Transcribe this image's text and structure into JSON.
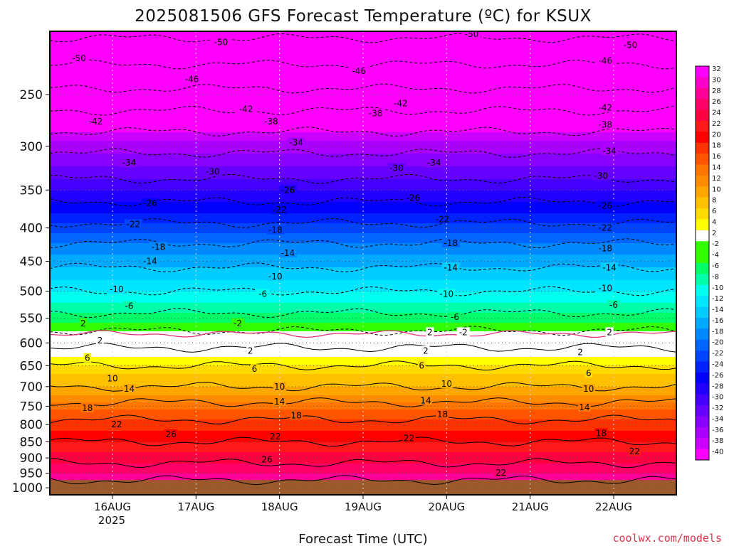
{
  "chart_data": {
    "type": "heatmap",
    "title": "2025081506 GFS Forecast Temperature (ºC) for KSUX",
    "xlabel": "Forecast Time (UTC)",
    "ylabel": "",
    "x_ticks": [
      "16AUG",
      "17AUG",
      "18AUG",
      "19AUG",
      "20AUG",
      "21AUG",
      "22AUG"
    ],
    "x_year": "2025",
    "x_range_days": [
      15.25,
      22.75
    ],
    "y_ticks": [
      250,
      300,
      350,
      400,
      450,
      500,
      550,
      600,
      650,
      700,
      750,
      800,
      850,
      900,
      950,
      1000
    ],
    "ylim_hPa": [
      200,
      1025
    ],
    "y_scale": "log",
    "surface_pressure_hPa": 973,
    "grid": "dotted",
    "colorbar": {
      "labels": [
        32,
        30,
        28,
        26,
        24,
        22,
        20,
        18,
        16,
        14,
        12,
        10,
        8,
        6,
        4,
        2,
        -2,
        -4,
        -6,
        -8,
        -10,
        -12,
        -14,
        -16,
        -18,
        -20,
        -22,
        -24,
        -26,
        -28,
        -30,
        -32,
        -34,
        -36,
        -38,
        -40
      ],
      "colors": [
        "#ff00ff",
        "#ff00cc",
        "#ff0099",
        "#ff0066",
        "#ff0040",
        "#ff1a1a",
        "#ff0000",
        "#ff3300",
        "#ff5500",
        "#ff7700",
        "#ff8c00",
        "#ffa600",
        "#ffc000",
        "#ffdb00",
        "#ffff00",
        "#ffffff",
        "#33ff00",
        "#33ff00",
        "#00ff66",
        "#00ffaa",
        "#00ffee",
        "#00e6ff",
        "#00ccff",
        "#00aaff",
        "#0088ff",
        "#0066ff",
        "#0044ff",
        "#0022ff",
        "#0000ff",
        "#2200ff",
        "#4400ff",
        "#6600ff",
        "#8800ff",
        "#aa00ff",
        "#cc00ff",
        "#ff00ff"
      ]
    },
    "layers_hPa_to_tempC": [
      [
        200,
        -55
      ],
      [
        220,
        -51
      ],
      [
        250,
        -45
      ],
      [
        280,
        -39
      ],
      [
        300,
        -35
      ],
      [
        330,
        -31
      ],
      [
        350,
        -28
      ],
      [
        380,
        -24
      ],
      [
        400,
        -21
      ],
      [
        430,
        -17
      ],
      [
        450,
        -15
      ],
      [
        470,
        -13
      ],
      [
        500,
        -10
      ],
      [
        530,
        -7
      ],
      [
        550,
        -5
      ],
      [
        575,
        -2
      ],
      [
        590,
        0
      ],
      [
        610,
        2
      ],
      [
        640,
        5
      ],
      [
        670,
        8
      ],
      [
        700,
        10
      ],
      [
        730,
        13
      ],
      [
        760,
        16
      ],
      [
        800,
        19
      ],
      [
        850,
        22
      ],
      [
        900,
        25
      ],
      [
        950,
        28
      ],
      [
        973,
        30
      ]
    ],
    "contour_labels": [
      {
        "text": "-50",
        "t": 15.6,
        "p": 220
      },
      {
        "text": "-50",
        "t": 17.3,
        "p": 208
      },
      {
        "text": "-50",
        "t": 20.3,
        "p": 202
      },
      {
        "text": "-50",
        "t": 22.2,
        "p": 210
      },
      {
        "text": "-46",
        "t": 16.95,
        "p": 237
      },
      {
        "text": "-46",
        "t": 18.95,
        "p": 230
      },
      {
        "text": "-46",
        "t": 21.9,
        "p": 222
      },
      {
        "text": "-42",
        "t": 15.8,
        "p": 275
      },
      {
        "text": "-42",
        "t": 17.6,
        "p": 263
      },
      {
        "text": "-42",
        "t": 19.45,
        "p": 258
      },
      {
        "text": "-42",
        "t": 21.9,
        "p": 262
      },
      {
        "text": "-38",
        "t": 17.9,
        "p": 275
      },
      {
        "text": "-38",
        "t": 19.15,
        "p": 267
      },
      {
        "text": "-38",
        "t": 21.9,
        "p": 278
      },
      {
        "text": "-34",
        "t": 16.2,
        "p": 318
      },
      {
        "text": "-34",
        "t": 18.2,
        "p": 296
      },
      {
        "text": "-34",
        "t": 19.85,
        "p": 318
      },
      {
        "text": "-34",
        "t": 21.95,
        "p": 305
      },
      {
        "text": "-30",
        "t": 17.2,
        "p": 328
      },
      {
        "text": "-30",
        "t": 19.4,
        "p": 324
      },
      {
        "text": "-30",
        "t": 21.85,
        "p": 333
      },
      {
        "text": "-26",
        "t": 16.45,
        "p": 367
      },
      {
        "text": "-26",
        "t": 18.1,
        "p": 350
      },
      {
        "text": "-26",
        "t": 19.6,
        "p": 360
      },
      {
        "text": "-26",
        "t": 21.9,
        "p": 370
      },
      {
        "text": "-22",
        "t": 16.25,
        "p": 395
      },
      {
        "text": "-22",
        "t": 18.0,
        "p": 375
      },
      {
        "text": "-22",
        "t": 19.95,
        "p": 388
      },
      {
        "text": "-22",
        "t": 21.9,
        "p": 400
      },
      {
        "text": "-18",
        "t": 16.55,
        "p": 428
      },
      {
        "text": "-18",
        "t": 17.95,
        "p": 403
      },
      {
        "text": "-18",
        "t": 20.05,
        "p": 422
      },
      {
        "text": "-18",
        "t": 21.9,
        "p": 430
      },
      {
        "text": "-14",
        "t": 16.45,
        "p": 450
      },
      {
        "text": "-14",
        "t": 18.1,
        "p": 437
      },
      {
        "text": "-14",
        "t": 20.05,
        "p": 460
      },
      {
        "text": "-14",
        "t": 21.95,
        "p": 460
      },
      {
        "text": "-10",
        "t": 16.05,
        "p": 497
      },
      {
        "text": "-10",
        "t": 17.95,
        "p": 475
      },
      {
        "text": "-10",
        "t": 20.0,
        "p": 505
      },
      {
        "text": "-10",
        "t": 21.9,
        "p": 495
      },
      {
        "text": "-6",
        "t": 16.2,
        "p": 527
      },
      {
        "text": "-6",
        "t": 17.8,
        "p": 505
      },
      {
        "text": "-6",
        "t": 20.1,
        "p": 548
      },
      {
        "text": "-6",
        "t": 22.0,
        "p": 525
      },
      {
        "text": "-2",
        "t": 17.5,
        "p": 560
      },
      {
        "text": "-2",
        "t": 20.2,
        "p": 578
      },
      {
        "text": "2",
        "t": 15.65,
        "p": 560
      },
      {
        "text": "2",
        "t": 15.85,
        "p": 595
      },
      {
        "text": "2",
        "t": 17.65,
        "p": 617
      },
      {
        "text": "2",
        "t": 19.8,
        "p": 578
      },
      {
        "text": "2",
        "t": 19.75,
        "p": 617
      },
      {
        "text": "2",
        "t": 21.6,
        "p": 620
      },
      {
        "text": "2",
        "t": 21.95,
        "p": 578
      },
      {
        "text": "6",
        "t": 15.7,
        "p": 633
      },
      {
        "text": "6",
        "t": 17.7,
        "p": 658
      },
      {
        "text": "6",
        "t": 19.7,
        "p": 650
      },
      {
        "text": "6",
        "t": 21.7,
        "p": 668
      },
      {
        "text": "10",
        "t": 16.0,
        "p": 680
      },
      {
        "text": "10",
        "t": 18.0,
        "p": 700
      },
      {
        "text": "10",
        "t": 20.0,
        "p": 693
      },
      {
        "text": "10",
        "t": 21.7,
        "p": 706
      },
      {
        "text": "14",
        "t": 16.2,
        "p": 706
      },
      {
        "text": "14",
        "t": 18.0,
        "p": 738
      },
      {
        "text": "14",
        "t": 19.75,
        "p": 735
      },
      {
        "text": "14",
        "t": 21.65,
        "p": 753
      },
      {
        "text": "18",
        "t": 15.7,
        "p": 755
      },
      {
        "text": "18",
        "t": 18.2,
        "p": 775
      },
      {
        "text": "18",
        "t": 19.95,
        "p": 772
      },
      {
        "text": "18",
        "t": 21.85,
        "p": 825
      },
      {
        "text": "22",
        "t": 16.05,
        "p": 800
      },
      {
        "text": "22",
        "t": 17.95,
        "p": 835
      },
      {
        "text": "22",
        "t": 19.55,
        "p": 840
      },
      {
        "text": "22",
        "t": 20.65,
        "p": 948
      },
      {
        "text": "22",
        "t": 22.25,
        "p": 880
      },
      {
        "text": "26",
        "t": 16.7,
        "p": 828
      },
      {
        "text": "26",
        "t": 17.85,
        "p": 905
      }
    ]
  },
  "footer": {
    "credit": "coolwx.com/models"
  }
}
